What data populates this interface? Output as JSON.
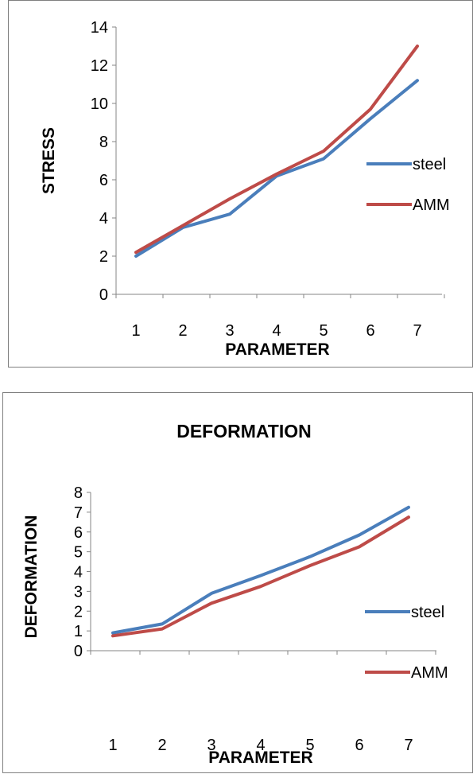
{
  "chart_data": [
    {
      "type": "line",
      "title": "",
      "xlabel": "PARAMETER",
      "ylabel": "STRESS",
      "categories": [
        "1",
        "2",
        "3",
        "4",
        "5",
        "6",
        "7"
      ],
      "ylim": [
        0,
        14
      ],
      "yticks": [
        "0",
        "2",
        "4",
        "6",
        "8",
        "10",
        "12",
        "14"
      ],
      "grid": false,
      "legend_position": "right",
      "series": [
        {
          "name": "steel",
          "color": "#4a7ebb",
          "values": [
            2.0,
            3.5,
            4.2,
            6.2,
            7.1,
            9.2,
            11.2
          ]
        },
        {
          "name": "AMM",
          "color": "#be4b48",
          "values": [
            2.2,
            3.6,
            5.0,
            6.3,
            7.5,
            9.7,
            13.0
          ]
        }
      ]
    },
    {
      "type": "line",
      "title": "DEFORMATION",
      "xlabel": "PARAMETER",
      "ylabel": "DEFORMATION",
      "categories": [
        "1",
        "2",
        "3",
        "4",
        "5",
        "6",
        "7"
      ],
      "ylim": [
        0,
        8
      ],
      "yticks": [
        "0",
        "1",
        "2",
        "3",
        "4",
        "5",
        "6",
        "7",
        "8"
      ],
      "grid": false,
      "legend_position": "right",
      "series": [
        {
          "name": "steel",
          "color": "#4a7ebb",
          "values": [
            0.9,
            1.35,
            2.9,
            3.8,
            4.75,
            5.85,
            7.25
          ]
        },
        {
          "name": "AMM",
          "color": "#be4b48",
          "values": [
            0.75,
            1.1,
            2.4,
            3.25,
            4.3,
            5.25,
            6.75
          ]
        }
      ]
    }
  ]
}
